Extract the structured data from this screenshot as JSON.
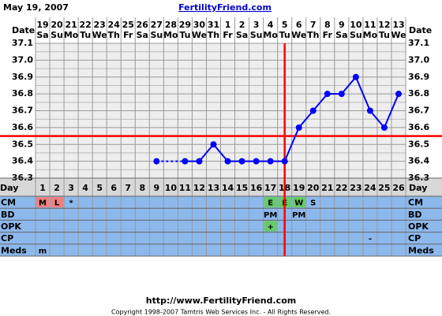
{
  "header": {
    "date": "May 19, 2007",
    "site": "FertilityFriend.com"
  },
  "chart_data": {
    "type": "line",
    "date_label": "Date",
    "day_label": "Day",
    "dates": [
      19,
      20,
      21,
      22,
      23,
      24,
      25,
      26,
      27,
      28,
      29,
      30,
      31,
      1,
      2,
      3,
      4,
      5,
      6,
      7,
      8,
      9,
      10,
      11,
      12,
      13
    ],
    "weekdays": [
      "Sa",
      "Su",
      "Mo",
      "Tu",
      "We",
      "Th",
      "Fr",
      "Sa",
      "Su",
      "Mo",
      "Tu",
      "We",
      "Th",
      "Fr",
      "Sa",
      "Su",
      "Mo",
      "Tu",
      "We",
      "Th",
      "Fr",
      "Sa",
      "Su",
      "Mo",
      "Tu",
      "We"
    ],
    "days": [
      1,
      2,
      3,
      4,
      5,
      6,
      7,
      8,
      9,
      10,
      11,
      12,
      13,
      14,
      15,
      16,
      17,
      18,
      19,
      20,
      21,
      22,
      23,
      24,
      25,
      26
    ],
    "values": [
      null,
      null,
      null,
      null,
      null,
      null,
      null,
      null,
      36.4,
      null,
      36.4,
      36.4,
      36.5,
      36.4,
      36.4,
      36.4,
      36.4,
      36.4,
      36.6,
      36.7,
      36.8,
      36.8,
      36.9,
      36.7,
      36.6,
      36.8
    ],
    "color": "#0000ff",
    "ylim": [
      36.3,
      37.1
    ],
    "yticks": [
      36.3,
      36.4,
      36.5,
      36.6,
      36.7,
      36.8,
      36.9,
      {
        "value": 37,
        "label": "37.0"
      },
      37.1
    ],
    "coverline": 36.55,
    "ovulation_day": 18,
    "marker_color": "#ff0000",
    "rows": [
      {
        "label": "CM",
        "entries": [
          {
            "day": 1,
            "text": "M",
            "color": "#f08080"
          },
          {
            "day": 2,
            "text": "L",
            "color": "#f08080"
          },
          {
            "day": 3,
            "text": "*"
          },
          {
            "day": 17,
            "text": "E",
            "color": "#66cc66"
          },
          {
            "day": 18,
            "text": "E",
            "color": "#66cc66"
          },
          {
            "day": 19,
            "text": "W",
            "color": "#66cc66"
          },
          {
            "day": 20,
            "text": "S"
          }
        ]
      },
      {
        "label": "BD",
        "entries": [
          {
            "day": 17,
            "text": "PM"
          },
          {
            "day": 19,
            "text": "PM"
          }
        ]
      },
      {
        "label": "OPK",
        "entries": [
          {
            "day": 17,
            "text": "+",
            "color": "#66cc66"
          }
        ]
      },
      {
        "label": "CP",
        "entries": [
          {
            "day": 24,
            "text": "-"
          }
        ]
      },
      {
        "label": "Meds",
        "entries": [
          {
            "day": 1,
            "text": "m"
          }
        ]
      }
    ]
  },
  "footer": {
    "url": "http://www.FertilityFriend.com",
    "copyright": "Copyright 1998-2007 Tamtris Web Services Inc. - All Rights Reserved."
  }
}
